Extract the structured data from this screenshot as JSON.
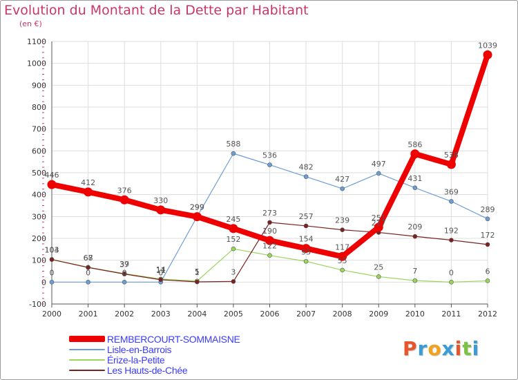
{
  "header": {
    "title": "Evolution du Montant de la Dette par Habitant",
    "subtitle": "(en €)"
  },
  "colors": {
    "title": "#c8356b",
    "grid": "#dddddd",
    "axis": "#555555",
    "tick_text": "#333333",
    "label_text": "#555555",
    "legend_text": "#3a3aff",
    "background": "#ffffff"
  },
  "logo": {
    "text": "Proxiti",
    "letter_colors": [
      "#e8552a",
      "#3b9bd7",
      "#f2a31b",
      "#3b9bd7",
      "#e8552a",
      "#7cc242",
      "#3b9bd7"
    ]
  },
  "chart_data": {
    "type": "line",
    "x": [
      "2000",
      "2001",
      "2002",
      "2003",
      "2004",
      "2005",
      "2006",
      "2007",
      "2008",
      "2009",
      "2010",
      "2011",
      "2012"
    ],
    "yticks": [
      "-100",
      "0",
      "100",
      "200",
      "300",
      "400",
      "500",
      "600",
      "700",
      "800",
      "900",
      "1000",
      "1100"
    ],
    "ylim": [
      -100,
      1100
    ],
    "grid": true,
    "legend_position": "bottom",
    "series": [
      {
        "name": "REMBERCOURT-SOMMAISNE",
        "color": "#ee0000",
        "highlight": true,
        "values": [
          446,
          412,
          376,
          330,
          299,
          245,
          190,
          154,
          117,
          251,
          586,
          538,
          1039
        ],
        "labels": [
          "446",
          "412",
          "376",
          "330",
          "299",
          "245",
          "190",
          "154",
          "117",
          "251",
          "586",
          "538",
          "1039"
        ]
      },
      {
        "name": "Lisle-en-Barrois",
        "color": "#6c9ed6",
        "highlight": false,
        "values": [
          0,
          0,
          0,
          0,
          299,
          588,
          536,
          482,
          427,
          497,
          431,
          369,
          289
        ],
        "labels": [
          "0",
          "0",
          "0",
          "0",
          "299",
          "588",
          "536",
          "482",
          "427",
          "497",
          "431",
          "369",
          "289"
        ]
      },
      {
        "name": "Érize-la-Petite",
        "color": "#99d65a",
        "highlight": false,
        "values": [
          104,
          68,
          39,
          14,
          5,
          152,
          122,
          95,
          55,
          25,
          7,
          0,
          6
        ],
        "labels": [
          "104",
          "68",
          "39",
          "14",
          "5",
          "152",
          "122",
          "95",
          "55",
          "25",
          "7",
          "0",
          "6"
        ]
      },
      {
        "name": "Les Hauts-de-Chée",
        "color": "#7a2121",
        "highlight": false,
        "values": [
          103,
          67,
          37,
          11,
          1,
          3,
          273,
          257,
          239,
          227,
          209,
          192,
          172
        ],
        "labels": [
          "103",
          "67",
          "37",
          "11",
          "1",
          "3",
          "273",
          "257",
          "239",
          "227",
          "209",
          "192",
          "172"
        ]
      }
    ]
  }
}
